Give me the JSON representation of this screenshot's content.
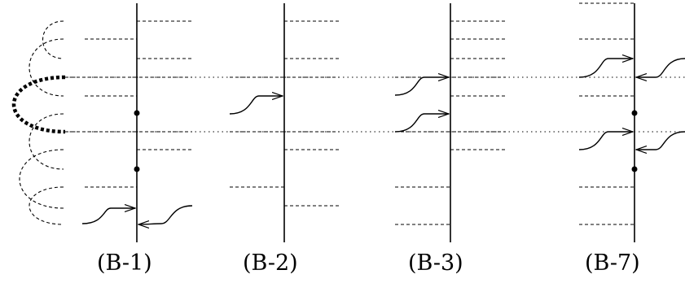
{
  "figure": {
    "panels": [
      {
        "id": "B-1",
        "label": "(B-1)"
      },
      {
        "id": "B-2",
        "label": "(B-2)"
      },
      {
        "id": "B-3",
        "label": "(B-3)"
      },
      {
        "id": "B-7",
        "label": "(B-7)"
      }
    ]
  }
}
